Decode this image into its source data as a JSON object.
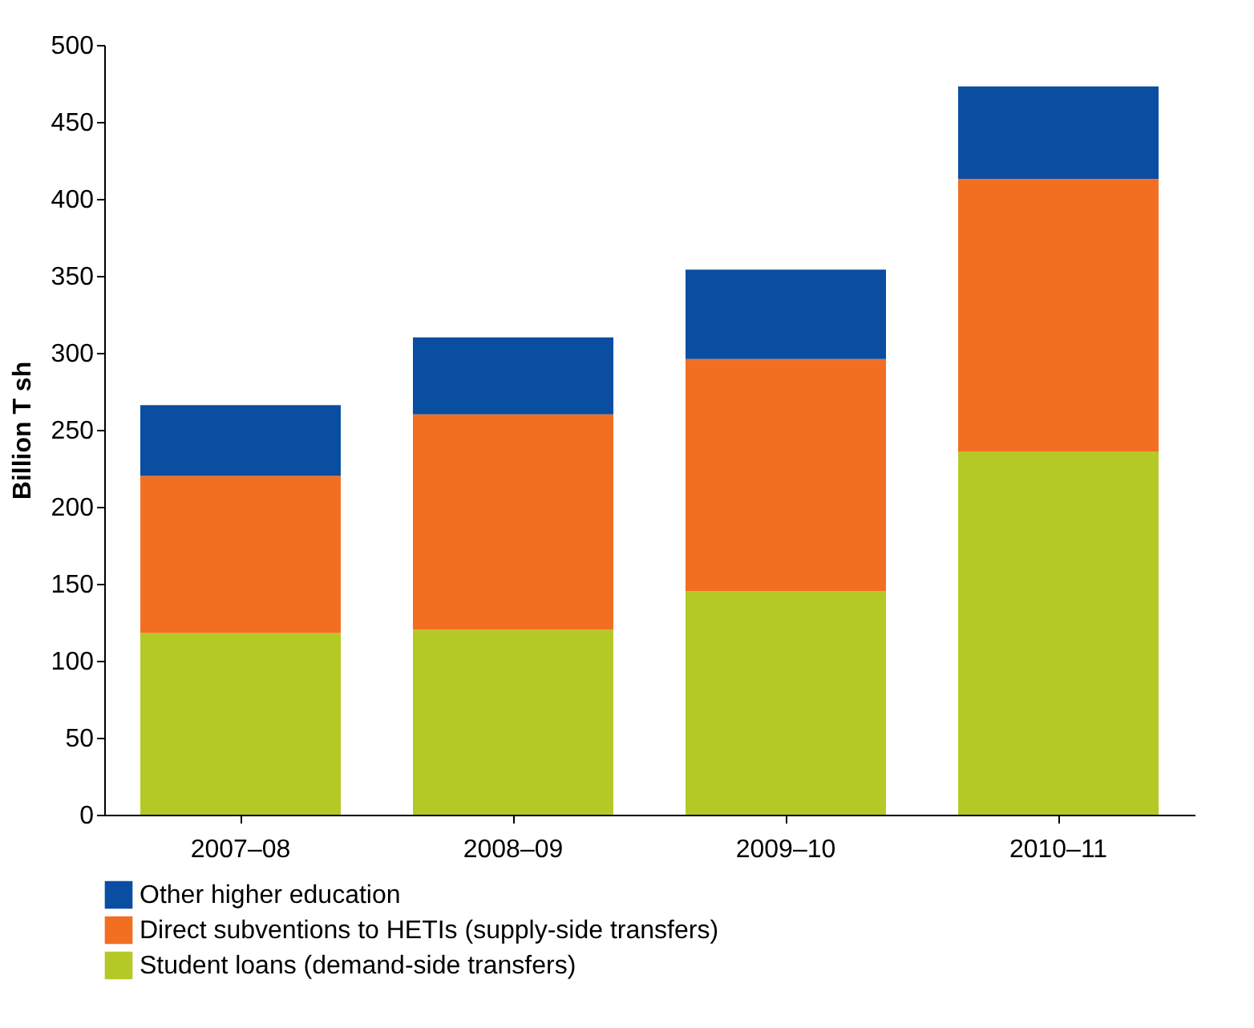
{
  "chart_data": {
    "type": "bar",
    "stacked": true,
    "ylabel": "Billion T sh",
    "categories": [
      "2007–08",
      "2008–09",
      "2009–10",
      "2010–11"
    ],
    "series": [
      {
        "name": "Student loans (demand-side transfers)",
        "color": "#b5c926",
        "values": [
          118,
          120,
          145,
          236
        ]
      },
      {
        "name": "Direct subventions to HETIs (supply-side transfers)",
        "color": "#f26f21",
        "values": [
          102,
          140,
          151,
          177
        ]
      },
      {
        "name": "Other higher education",
        "color": "#0a4ea2",
        "values": [
          46,
          50,
          58,
          60
        ]
      }
    ],
    "ylim": [
      0,
      500
    ],
    "yticks": [
      0,
      50,
      100,
      150,
      200,
      250,
      300,
      350,
      400,
      450,
      500
    ],
    "grid": false,
    "legend": "bottom"
  }
}
